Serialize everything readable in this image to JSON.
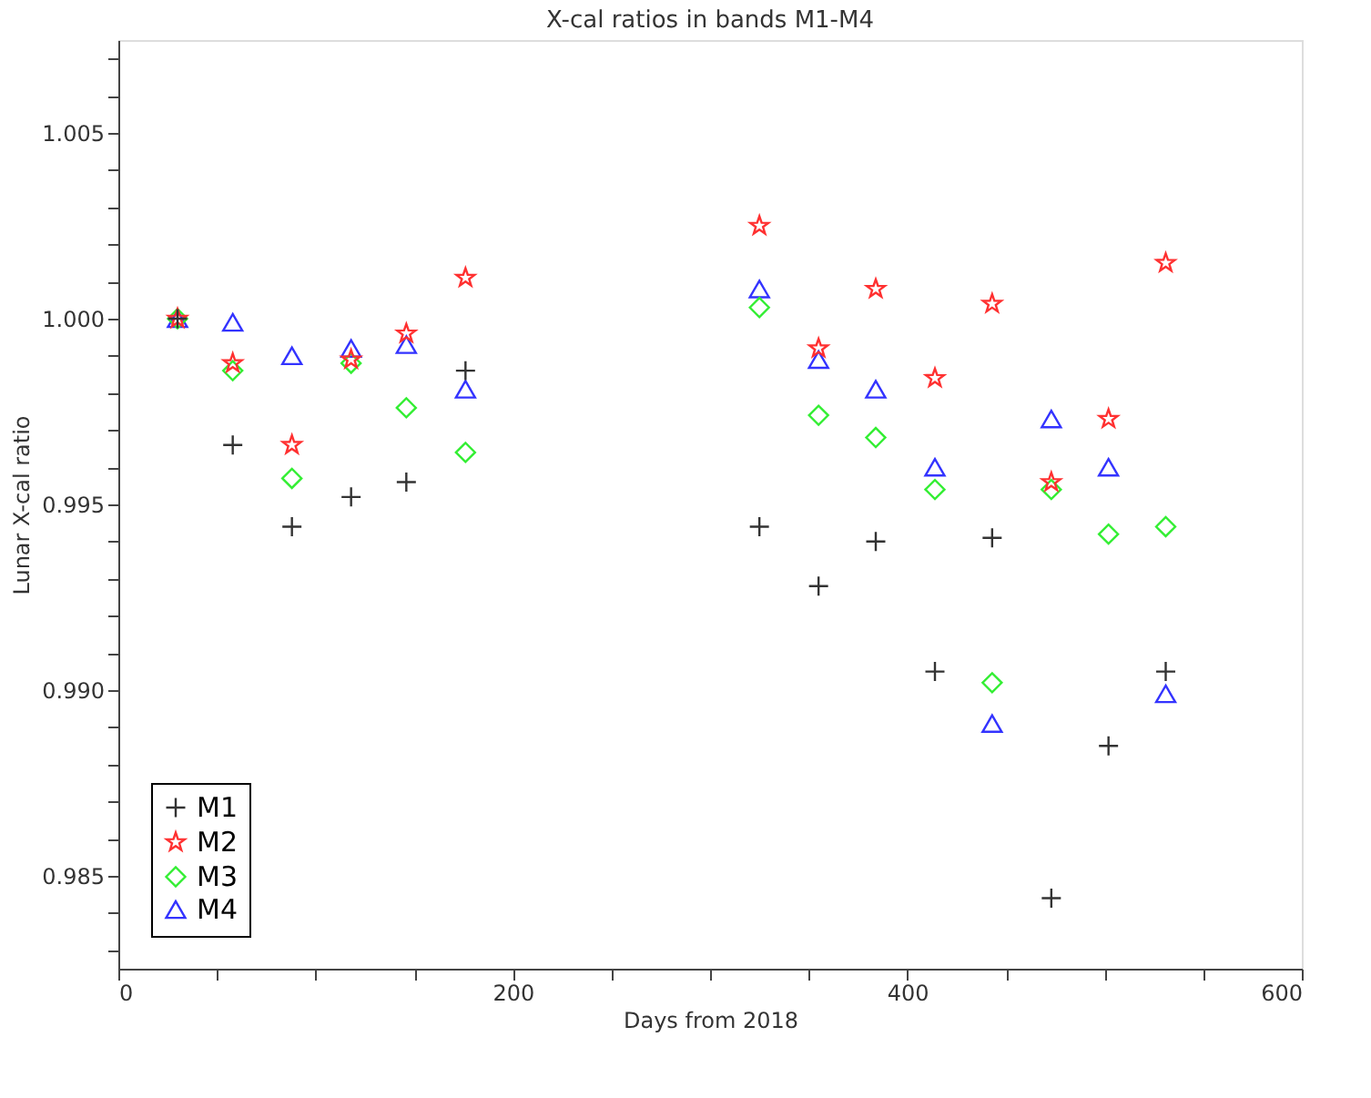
{
  "chart_data": {
    "type": "scatter",
    "title": "X-cal ratios in bands M1-M4",
    "xlabel": "Days from 2018",
    "ylabel": "Lunar X-cal ratio",
    "x": [
      30,
      58,
      88,
      118,
      146,
      176,
      325,
      355,
      384,
      414,
      443,
      473,
      502,
      531
    ],
    "series": [
      {
        "name": "M1",
        "color": "#333333",
        "marker": "cross",
        "values": [
          1.0,
          0.9966,
          0.9944,
          0.9952,
          0.9956,
          0.9986,
          0.9944,
          0.9928,
          0.994,
          0.9905,
          0.9941,
          0.9844,
          0.9885,
          0.9905
        ]
      },
      {
        "name": "M2",
        "color": "#ff3030",
        "marker": "star",
        "values": [
          1.0,
          0.9988,
          0.9966,
          0.9989,
          0.9996,
          1.0011,
          1.0025,
          0.9992,
          1.0008,
          0.9984,
          1.0004,
          0.9956,
          0.9973,
          1.0015
        ]
      },
      {
        "name": "M3",
        "color": "#33ee33",
        "marker": "diamond",
        "values": [
          1.0,
          0.9986,
          0.9957,
          0.9988,
          0.9976,
          0.9964,
          1.0003,
          0.9974,
          0.9968,
          0.9954,
          0.9902,
          0.9954,
          0.9942,
          0.9944
        ]
      },
      {
        "name": "M4",
        "color": "#3333ff",
        "marker": "triangle",
        "values": [
          1.0,
          0.9999,
          0.999,
          0.9992,
          0.9993,
          0.9981,
          1.0008,
          0.9989,
          0.9981,
          0.996,
          0.9891,
          0.9973,
          0.996,
          0.9899
        ]
      }
    ],
    "xlim": [
      0,
      600
    ],
    "xticks": [
      0,
      {
        "value": 50,
        "label": null
      },
      {
        "value": 100,
        "label": null
      },
      {
        "value": 150,
        "label": null
      },
      200,
      {
        "value": 250,
        "label": null
      },
      {
        "value": 300,
        "label": null
      },
      {
        "value": 350,
        "label": null
      },
      400,
      {
        "value": 450,
        "label": null
      },
      {
        "value": 500,
        "label": null
      },
      {
        "value": 550,
        "label": null
      },
      600
    ],
    "ylim": [
      0.9825,
      1.0075
    ],
    "yticks": [
      {
        "value": 0.983,
        "label": null
      },
      {
        "value": 0.984,
        "label": null
      },
      {
        "value": 0.985,
        "label": "0.985"
      },
      {
        "value": 0.986,
        "label": null
      },
      {
        "value": 0.987,
        "label": null
      },
      {
        "value": 0.988,
        "label": null
      },
      {
        "value": 0.989,
        "label": null
      },
      {
        "value": 0.99,
        "label": "0.990"
      },
      {
        "value": 0.991,
        "label": null
      },
      {
        "value": 0.992,
        "label": null
      },
      {
        "value": 0.993,
        "label": null
      },
      {
        "value": 0.994,
        "label": null
      },
      {
        "value": 0.995,
        "label": "0.995"
      },
      {
        "value": 0.996,
        "label": null
      },
      {
        "value": 0.997,
        "label": null
      },
      {
        "value": 0.998,
        "label": null
      },
      {
        "value": 0.999,
        "label": null
      },
      {
        "value": 1.0,
        "label": "1.000"
      },
      {
        "value": 1.001,
        "label": null
      },
      {
        "value": 1.002,
        "label": null
      },
      {
        "value": 1.003,
        "label": null
      },
      {
        "value": 1.004,
        "label": null
      },
      {
        "value": 1.005,
        "label": "1.005"
      },
      {
        "value": 1.006,
        "label": null
      },
      {
        "value": 1.007,
        "label": null
      }
    ],
    "grid": false,
    "legend": "bottom left"
  }
}
